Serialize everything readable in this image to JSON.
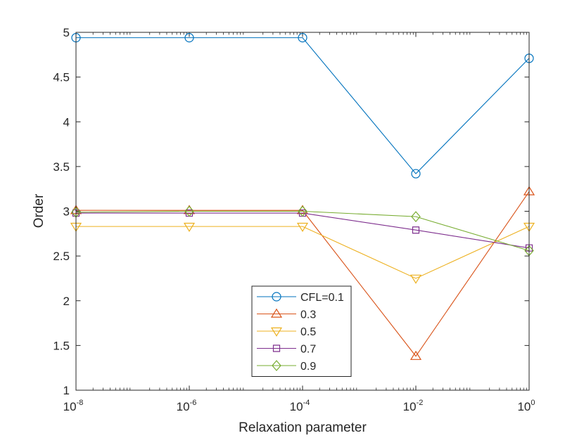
{
  "chart_data": {
    "type": "line",
    "title": "",
    "xlabel": "Relaxation parameter",
    "ylabel": "Order",
    "xscale": "log",
    "x": [
      1e-08,
      1e-06,
      0.0001,
      0.01,
      1
    ],
    "xlim": [
      1e-08,
      1
    ],
    "ylim": [
      1,
      5
    ],
    "xticks": [
      {
        "base": "10",
        "exp": "-8",
        "value": 1e-08
      },
      {
        "base": "10",
        "exp": "-6",
        "value": 1e-06
      },
      {
        "base": "10",
        "exp": "-4",
        "value": 0.0001
      },
      {
        "base": "10",
        "exp": "-2",
        "value": 0.01
      },
      {
        "base": "10",
        "exp": "0",
        "value": 1
      }
    ],
    "yticks": [
      {
        "label": "1",
        "value": 1
      },
      {
        "label": "1.5",
        "value": 1.5
      },
      {
        "label": "2",
        "value": 2
      },
      {
        "label": "2.5",
        "value": 2.5
      },
      {
        "label": "3",
        "value": 3
      },
      {
        "label": "3.5",
        "value": 3.5
      },
      {
        "label": "4",
        "value": 4
      },
      {
        "label": "4.5",
        "value": 4.5
      },
      {
        "label": "5",
        "value": 5
      }
    ],
    "grid": false,
    "legend_position": "bottom-center",
    "series": [
      {
        "name": "CFL=0.1",
        "color": "#0072BD",
        "marker": "circle",
        "values": [
          4.94,
          4.94,
          4.94,
          3.42,
          4.71
        ]
      },
      {
        "name": "0.3",
        "color": "#D95319",
        "marker": "triangle-up",
        "values": [
          3.01,
          3.01,
          3.01,
          1.38,
          3.22
        ]
      },
      {
        "name": "0.5",
        "color": "#EDB120",
        "marker": "triangle-down",
        "values": [
          2.83,
          2.83,
          2.83,
          2.25,
          2.83
        ]
      },
      {
        "name": "0.7",
        "color": "#7E2F8E",
        "marker": "square",
        "values": [
          2.98,
          2.98,
          2.98,
          2.79,
          2.59
        ]
      },
      {
        "name": "0.9",
        "color": "#77AC30",
        "marker": "diamond",
        "values": [
          2.99,
          3.0,
          3.0,
          2.94,
          2.56
        ]
      }
    ]
  }
}
